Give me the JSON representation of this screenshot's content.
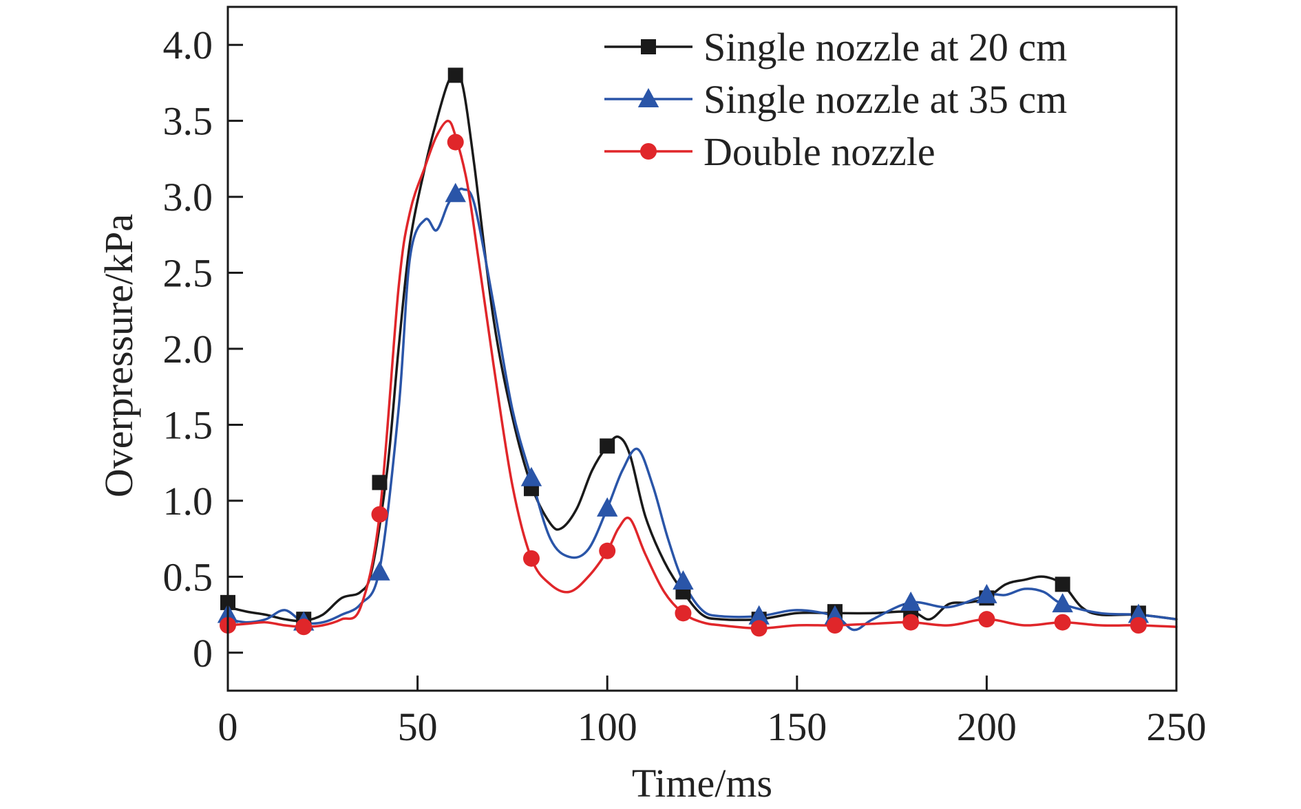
{
  "chart_data": {
    "type": "line",
    "xlabel": "Time/ms",
    "ylabel": "Overpressure/kPa",
    "xlim": [
      0,
      250
    ],
    "ylim": [
      -0.25,
      4.25
    ],
    "xticks": [
      0,
      50,
      100,
      150,
      200,
      250
    ],
    "xtick_labels": [
      "0",
      "50",
      "100",
      "150",
      "200",
      "250"
    ],
    "yticks": [
      0,
      0.5,
      1.0,
      1.5,
      2.0,
      2.5,
      3.0,
      3.5,
      4.0
    ],
    "ytick_labels": [
      "0",
      "0.5",
      "1.0",
      "1.5",
      "2.0",
      "2.5",
      "3.0",
      "3.5",
      "4.0"
    ],
    "grid": false,
    "legend_position": "top-right",
    "series": [
      {
        "name": "Single nozzle at 20 cm",
        "color": "#1a1a1a",
        "marker": "square",
        "marker_x": [
          0,
          20,
          40,
          60,
          80,
          100,
          120,
          140,
          160,
          180,
          200,
          220,
          240
        ],
        "marker_y": [
          0.33,
          0.22,
          1.12,
          3.8,
          1.08,
          1.36,
          0.4,
          0.22,
          0.27,
          0.27,
          0.36,
          0.45,
          0.26
        ],
        "curve_x": [
          0,
          5,
          10,
          15,
          20,
          25,
          30,
          35,
          38,
          42,
          45,
          48,
          52,
          55,
          58,
          60,
          62,
          65,
          70,
          75,
          80,
          85,
          88,
          92,
          96,
          100,
          103,
          106,
          110,
          115,
          120,
          125,
          130,
          140,
          150,
          160,
          170,
          180,
          185,
          190,
          195,
          200,
          205,
          210,
          215,
          220,
          225,
          230,
          240,
          250
        ],
        "curve_y": [
          0.3,
          0.27,
          0.25,
          0.22,
          0.21,
          0.25,
          0.36,
          0.4,
          0.55,
          1.2,
          2.0,
          2.7,
          3.2,
          3.5,
          3.75,
          3.8,
          3.72,
          3.2,
          2.2,
          1.55,
          1.1,
          0.85,
          0.82,
          0.95,
          1.2,
          1.36,
          1.42,
          1.3,
          0.9,
          0.6,
          0.4,
          0.25,
          0.22,
          0.22,
          0.26,
          0.26,
          0.26,
          0.27,
          0.22,
          0.32,
          0.33,
          0.36,
          0.45,
          0.48,
          0.5,
          0.45,
          0.3,
          0.25,
          0.25,
          0.22
        ]
      },
      {
        "name": "Single nozzle at 35 cm",
        "color": "#2a55a8",
        "marker": "triangle",
        "marker_x": [
          0,
          20,
          40,
          60,
          80,
          100,
          120,
          140,
          160,
          180,
          200,
          220,
          240
        ],
        "marker_y": [
          0.25,
          0.2,
          0.53,
          3.02,
          1.15,
          0.95,
          0.47,
          0.24,
          0.24,
          0.33,
          0.38,
          0.32,
          0.25
        ],
        "curve_x": [
          0,
          5,
          10,
          15,
          20,
          25,
          30,
          35,
          40,
          45,
          48,
          52,
          55,
          58,
          60,
          62,
          65,
          70,
          75,
          80,
          85,
          90,
          95,
          100,
          104,
          108,
          112,
          116,
          120,
          125,
          130,
          140,
          150,
          160,
          165,
          170,
          180,
          190,
          200,
          205,
          210,
          215,
          220,
          230,
          240,
          250
        ],
        "curve_y": [
          0.22,
          0.2,
          0.22,
          0.28,
          0.2,
          0.2,
          0.25,
          0.32,
          0.55,
          1.6,
          2.6,
          2.85,
          2.78,
          2.95,
          3.02,
          3.05,
          2.95,
          2.3,
          1.6,
          1.15,
          0.75,
          0.63,
          0.68,
          0.95,
          1.2,
          1.34,
          1.1,
          0.75,
          0.47,
          0.28,
          0.24,
          0.24,
          0.28,
          0.24,
          0.15,
          0.22,
          0.33,
          0.3,
          0.38,
          0.38,
          0.42,
          0.4,
          0.32,
          0.26,
          0.25,
          0.22
        ]
      },
      {
        "name": "Double nozzle",
        "color": "#e0262a",
        "marker": "circle",
        "marker_x": [
          0,
          20,
          40,
          60,
          80,
          100,
          120,
          140,
          160,
          180,
          200,
          220,
          240
        ],
        "marker_y": [
          0.18,
          0.17,
          0.91,
          3.36,
          0.62,
          0.67,
          0.26,
          0.16,
          0.18,
          0.2,
          0.22,
          0.2,
          0.18
        ],
        "curve_x": [
          0,
          5,
          10,
          15,
          20,
          25,
          30,
          35,
          40,
          45,
          48,
          52,
          55,
          58,
          60,
          63,
          66,
          70,
          75,
          80,
          85,
          90,
          95,
          100,
          103,
          106,
          110,
          115,
          120,
          125,
          130,
          140,
          150,
          160,
          170,
          180,
          190,
          200,
          210,
          220,
          230,
          240,
          250
        ],
        "curve_y": [
          0.18,
          0.19,
          0.2,
          0.18,
          0.17,
          0.18,
          0.22,
          0.3,
          0.91,
          2.4,
          2.9,
          3.2,
          3.4,
          3.5,
          3.4,
          3.1,
          2.6,
          1.9,
          1.1,
          0.62,
          0.45,
          0.4,
          0.5,
          0.67,
          0.82,
          0.88,
          0.65,
          0.4,
          0.26,
          0.2,
          0.18,
          0.16,
          0.18,
          0.18,
          0.19,
          0.2,
          0.18,
          0.22,
          0.18,
          0.2,
          0.18,
          0.18,
          0.17
        ]
      }
    ]
  }
}
